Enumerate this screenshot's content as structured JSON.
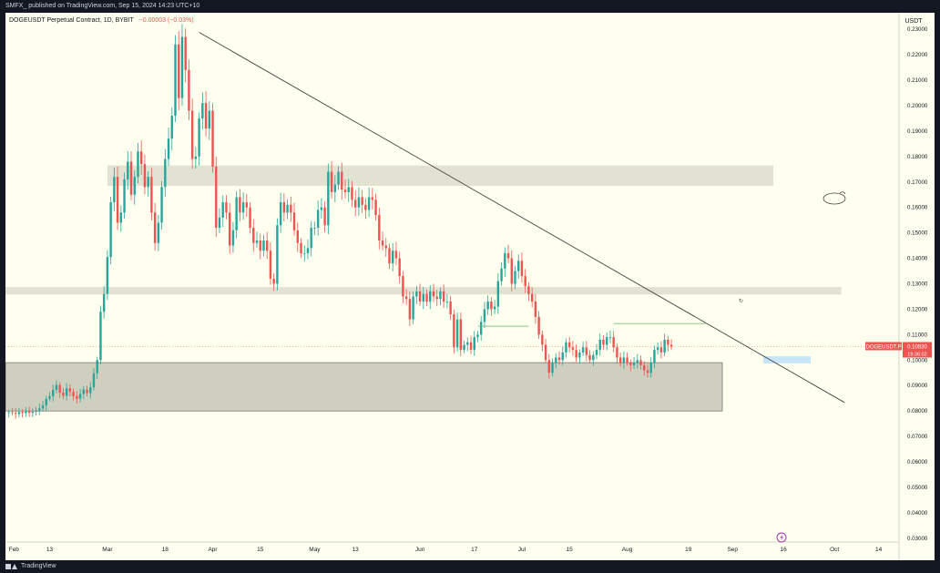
{
  "header": {
    "publish_line": "SMFX_ published on TradingView.com, Sep 15, 2024 14:23 UTC+10"
  },
  "footer": {
    "brand": "TradingView"
  },
  "colors": {
    "up": "#26a69a",
    "down": "#ef5350",
    "background": "#fffff0",
    "gray_zone": "#b2b2a3",
    "blue_zone": "#bbdefb"
  },
  "chart_data": {
    "type": "candlestick",
    "title": "DOGEUSDT Perpetual Contract, 1D, BYBIT",
    "change": "−0.00003 (−0.03%)",
    "currency": "USDT",
    "symbol_label": "DOGEUSDT.P",
    "last_price": "0.10530",
    "countdown": "19:36:02",
    "ylim": [
      0.0285,
      0.2365
    ],
    "xlim": [
      "2024-01-31",
      "2024-10-20"
    ],
    "y_ticks": [
      "0.23000",
      "0.22000",
      "0.21000",
      "0.20000",
      "0.19000",
      "0.18000",
      "0.17000",
      "0.16000",
      "0.15000",
      "0.14000",
      "0.13000",
      "0.12000",
      "0.11000",
      "0.10000",
      "0.09000",
      "0.08000",
      "0.07000",
      "0.06000",
      "0.05000",
      "0.04000",
      "0.03000"
    ],
    "x_ticks": [
      {
        "label": "Feb",
        "date": "2024-02-01"
      },
      {
        "label": "13",
        "date": "2024-02-13"
      },
      {
        "label": "Mar",
        "date": "2024-03-01"
      },
      {
        "label": "18",
        "date": "2024-03-18"
      },
      {
        "label": "Apr",
        "date": "2024-04-01"
      },
      {
        "label": "15",
        "date": "2024-04-15"
      },
      {
        "label": "May",
        "date": "2024-05-01"
      },
      {
        "label": "13",
        "date": "2024-05-13"
      },
      {
        "label": "Jun",
        "date": "2024-06-01"
      },
      {
        "label": "17",
        "date": "2024-06-17"
      },
      {
        "label": "Jul",
        "date": "2024-07-01"
      },
      {
        "label": "15",
        "date": "2024-07-15"
      },
      {
        "label": "Aug",
        "date": "2024-08-01"
      },
      {
        "label": "19",
        "date": "2024-08-19"
      },
      {
        "label": "Sep",
        "date": "2024-09-01"
      },
      {
        "label": "16",
        "date": "2024-09-16"
      },
      {
        "label": "Oct",
        "date": "2024-10-01"
      },
      {
        "label": "14",
        "date": "2024-10-14"
      }
    ],
    "start_date": "2024-02-01",
    "closes": [
      0.0795,
      0.0792,
      0.0788,
      0.0796,
      0.0792,
      0.0798,
      0.0793,
      0.0797,
      0.0802,
      0.081,
      0.0822,
      0.0848,
      0.0858,
      0.0883,
      0.0902,
      0.0872,
      0.086,
      0.0889,
      0.0875,
      0.0858,
      0.0848,
      0.0867,
      0.0884,
      0.087,
      0.0893,
      0.0948,
      0.1,
      0.119,
      0.126,
      0.1405,
      0.162,
      0.172,
      0.154,
      0.158,
      0.171,
      0.178,
      0.165,
      0.172,
      0.182,
      0.177,
      0.168,
      0.172,
      0.158,
      0.146,
      0.154,
      0.168,
      0.179,
      0.187,
      0.196,
      0.224,
      0.203,
      0.227,
      0.214,
      0.198,
      0.179,
      0.18,
      0.195,
      0.201,
      0.191,
      0.198,
      0.176,
      0.152,
      0.156,
      0.162,
      0.158,
      0.145,
      0.151,
      0.164,
      0.158,
      0.162,
      0.16,
      0.152,
      0.146,
      0.147,
      0.143,
      0.147,
      0.143,
      0.132,
      0.13,
      0.153,
      0.162,
      0.158,
      0.161,
      0.158,
      0.151,
      0.146,
      0.142,
      0.142,
      0.144,
      0.152,
      0.152,
      0.159,
      0.16,
      0.153,
      0.174,
      0.166,
      0.169,
      0.174,
      0.167,
      0.166,
      0.168,
      0.163,
      0.16,
      0.164,
      0.161,
      0.159,
      0.164,
      0.163,
      0.157,
      0.147,
      0.145,
      0.144,
      0.138,
      0.143,
      0.14,
      0.133,
      0.125,
      0.124,
      0.116,
      0.125,
      0.127,
      0.123,
      0.126,
      0.123,
      0.127,
      0.125,
      0.124,
      0.127,
      0.123,
      0.123,
      0.118,
      0.105,
      0.116,
      0.104,
      0.106,
      0.107,
      0.104,
      0.109,
      0.11,
      0.115,
      0.12,
      0.123,
      0.12,
      0.121,
      0.131,
      0.136,
      0.142,
      0.14,
      0.13,
      0.135,
      0.139,
      0.133,
      0.129,
      0.126,
      0.123,
      0.117,
      0.11,
      0.106,
      0.1,
      0.095,
      0.099,
      0.101,
      0.1,
      0.103,
      0.107,
      0.105,
      0.104,
      0.101,
      0.103,
      0.105,
      0.102,
      0.1,
      0.102,
      0.104,
      0.108,
      0.106,
      0.109,
      0.109,
      0.105,
      0.101,
      0.099,
      0.101,
      0.099,
      0.098,
      0.099,
      0.1,
      0.098,
      0.096,
      0.095,
      0.099,
      0.104,
      0.105,
      0.103,
      0.108,
      0.106,
      0.1053
    ],
    "annotations": {
      "trendline": [
        {
          "date": "2024-03-28",
          "price": 0.2288
        },
        {
          "date": "2024-10-04",
          "price": 0.0833
        }
      ],
      "gray_zones": [
        {
          "from": "2024-03-01",
          "to": "2024-09-13",
          "low": 0.1685,
          "high": 0.1765
        },
        {
          "from": "2024-01-31",
          "to": "2024-10-03",
          "low": 0.1258,
          "high": 0.1287
        },
        {
          "from": "2024-01-31",
          "to": "2024-08-29",
          "low": 0.08,
          "high": 0.099
        }
      ],
      "blue_zone": {
        "from": "2024-09-10",
        "to": "2024-09-24",
        "low": 0.0987,
        "high": 0.1015
      },
      "green_lines": [
        {
          "from": "2024-06-18",
          "to": "2024-07-03",
          "price": 0.1133
        },
        {
          "from": "2024-07-28",
          "to": "2024-08-24",
          "price": 0.1143
        }
      ]
    }
  }
}
